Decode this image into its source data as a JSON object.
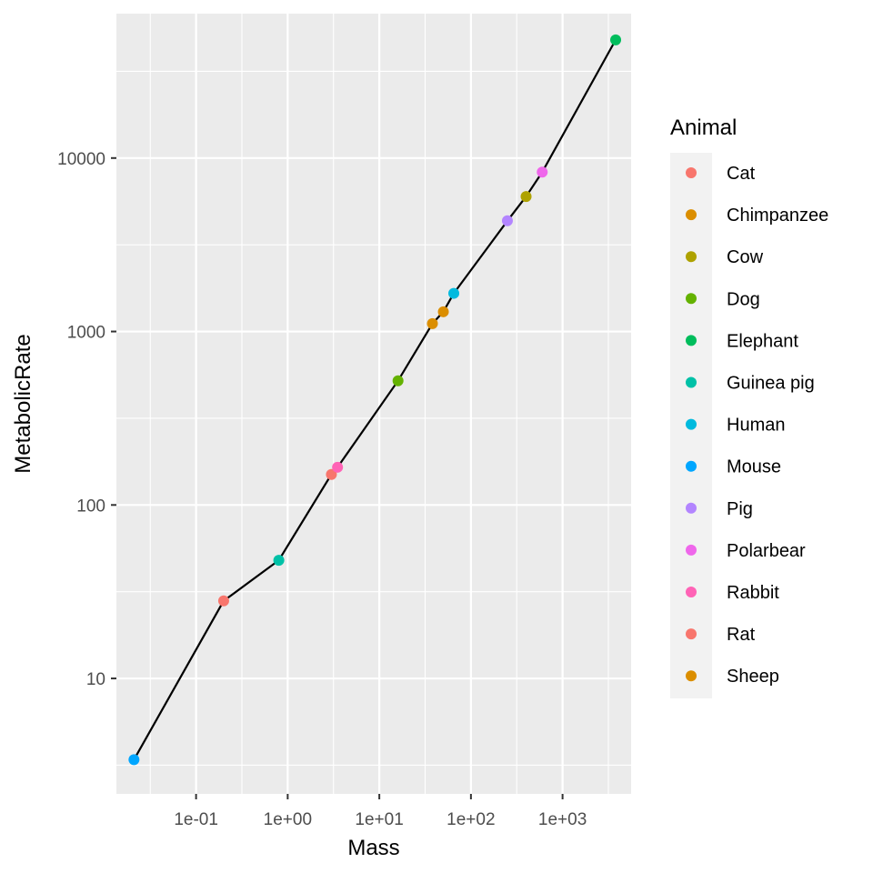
{
  "chart_data": {
    "type": "scatter",
    "title": "",
    "xlabel": "Mass",
    "ylabel": "MetabolicRate",
    "x_scale": "log10",
    "y_scale": "log10",
    "xlim": [
      0.0135,
      5600
    ],
    "ylim": [
      2.16,
      68000
    ],
    "x_ticks": [
      {
        "value": 0.1,
        "label": "1e-01"
      },
      {
        "value": 1,
        "label": "1e+00"
      },
      {
        "value": 10,
        "label": "1e+01"
      },
      {
        "value": 100,
        "label": "1e+02"
      },
      {
        "value": 1000,
        "label": "1e+03"
      }
    ],
    "y_ticks": [
      {
        "value": 10,
        "label": "10"
      },
      {
        "value": 100,
        "label": "100"
      },
      {
        "value": 1000,
        "label": "1000"
      },
      {
        "value": 10000,
        "label": "10000"
      }
    ],
    "grid": true,
    "line": true,
    "legend": {
      "title": "Animal",
      "position": "right"
    },
    "series": [
      {
        "name": "Cat",
        "color": "#F8766D",
        "x": 3.0,
        "y": 150
      },
      {
        "name": "Chimpanzee",
        "color": "#DB8E00",
        "x": 38,
        "y": 1110
      },
      {
        "name": "Cow",
        "color": "#AEA200",
        "x": 400,
        "y": 6000
      },
      {
        "name": "Dog",
        "color": "#64B200",
        "x": 16,
        "y": 520
      },
      {
        "name": "Elephant",
        "color": "#00BD5C",
        "x": 3800,
        "y": 48000
      },
      {
        "name": "Guinea pig",
        "color": "#00C1A7",
        "x": 0.8,
        "y": 48
      },
      {
        "name": "Human",
        "color": "#00BADE",
        "x": 65,
        "y": 1660
      },
      {
        "name": "Mouse",
        "color": "#00A6FF",
        "x": 0.021,
        "y": 3.4
      },
      {
        "name": "Pig",
        "color": "#B385FF",
        "x": 250,
        "y": 4350
      },
      {
        "name": "Polarbear",
        "color": "#EF67EB",
        "x": 600,
        "y": 8300
      },
      {
        "name": "Rabbit",
        "color": "#FF63B6",
        "x": 3.5,
        "y": 165
      },
      {
        "name": "Rat",
        "color": "#F8766D",
        "x": 0.2,
        "y": 28
      },
      {
        "name": "Sheep",
        "color": "#DB8E00",
        "x": 50,
        "y": 1300
      }
    ],
    "colors": [
      "#F8766D",
      "#DB8E00",
      "#AEA200",
      "#64B200",
      "#00BD5C",
      "#00C1A7",
      "#00BADE",
      "#00A6FF",
      "#B385FF",
      "#EF67EB",
      "#FF63B6",
      "#F8766D",
      "#DB8E00"
    ]
  }
}
